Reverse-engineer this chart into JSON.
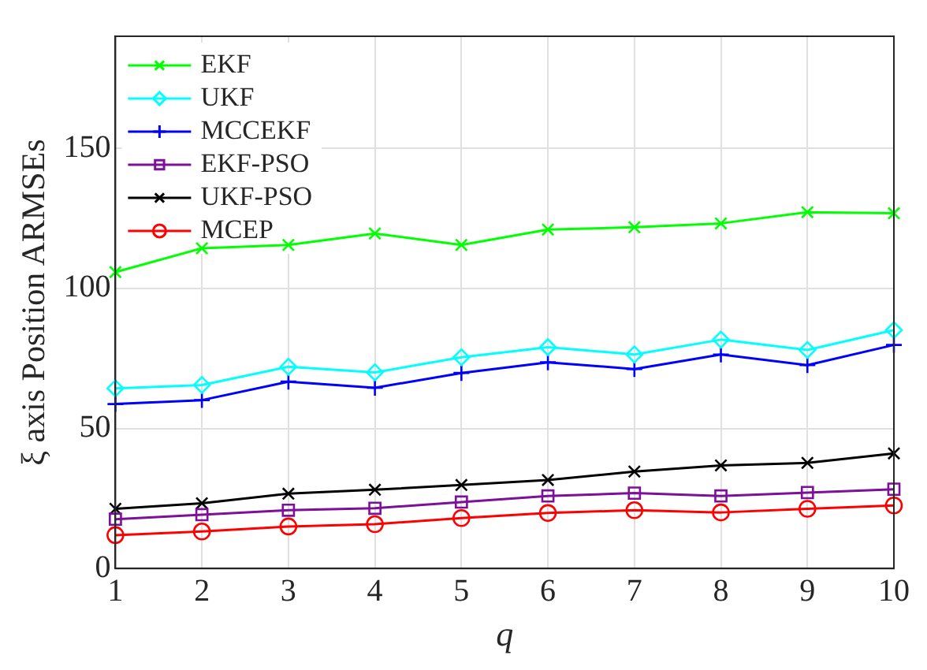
{
  "chart_data": {
    "type": "line",
    "xlabel": "q",
    "ylabel": "ξ axis Position ARMSEs",
    "x": [
      1,
      2,
      3,
      4,
      5,
      6,
      7,
      8,
      9,
      10
    ],
    "series": [
      {
        "name": "EKF",
        "color": "#00ff00",
        "marker": "cross",
        "values": [
          105.8,
          114.3,
          115.5,
          119.6,
          115.5,
          121.0,
          121.8,
          123.2,
          127.2,
          126.8
        ]
      },
      {
        "name": "UKF",
        "color": "#00ffff",
        "marker": "diamond",
        "values": [
          64.3,
          65.5,
          72.0,
          70.0,
          75.4,
          79.0,
          76.4,
          81.7,
          78.0,
          85.1
        ]
      },
      {
        "name": "MCCEKF",
        "color": "#0000ff",
        "marker": "plus",
        "values": [
          58.7,
          60.1,
          66.7,
          64.5,
          69.8,
          73.6,
          71.2,
          76.4,
          72.6,
          79.8
        ]
      },
      {
        "name": "EKF-PSO",
        "color": "#7e0f9a",
        "marker": "square",
        "values": [
          17.6,
          19.2,
          20.8,
          21.5,
          23.7,
          25.9,
          26.9,
          25.9,
          27.1,
          28.3
        ]
      },
      {
        "name": "UKF-PSO",
        "color": "#000000",
        "marker": "cross",
        "values": [
          21.3,
          23.3,
          26.7,
          28.1,
          29.8,
          31.6,
          34.6,
          36.8,
          37.7,
          41.1
        ]
      },
      {
        "name": "MCEP",
        "color": "#ff0000",
        "marker": "circle",
        "values": [
          11.9,
          13.2,
          15.0,
          15.8,
          18.0,
          19.8,
          20.8,
          20.0,
          21.3,
          22.5
        ]
      }
    ],
    "xlim": [
      1,
      10
    ],
    "xticks": [
      1,
      2,
      3,
      4,
      5,
      6,
      7,
      8,
      9,
      10
    ],
    "ylim": [
      0,
      190
    ],
    "yticks": [
      0,
      50,
      100,
      150
    ],
    "grid": true,
    "legend": "top left",
    "line_style": "solid"
  }
}
